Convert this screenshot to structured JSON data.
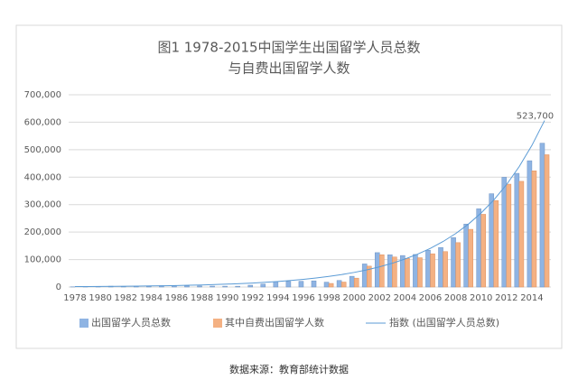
{
  "chart_data": {
    "type": "bar",
    "title": "图1 1978-2015中国学生出国留学人员总数",
    "subtitle": "与自费出国留学人数",
    "source": "数据来源：教育部统计数据",
    "categories": [
      "1978",
      null,
      "1980",
      null,
      "1982",
      null,
      "1984",
      null,
      "1986",
      null,
      "1988",
      null,
      "1990",
      null,
      "1992",
      null,
      "1994",
      null,
      "1996",
      null,
      "1998",
      null,
      "2000",
      null,
      "2002",
      null,
      "2004",
      null,
      "2006",
      null,
      "2008",
      null,
      "2010",
      null,
      "2012",
      null,
      "2014",
      null
    ],
    "series": [
      {
        "name": "出国留学人员总数",
        "color": "#8fb4e3",
        "values": [
          860,
          1777,
          2124,
          2922,
          2326,
          2633,
          3073,
          4888,
          4676,
          4703,
          3786,
          3329,
          2950,
          2900,
          6540,
          10742,
          19071,
          20381,
          20905,
          22410,
          17622,
          23749,
          38989,
          83973,
          125179,
          117307,
          114682,
          118515,
          134000,
          144000,
          179800,
          229300,
          284700,
          339700,
          399600,
          413900,
          459800,
          523700
        ],
        "value_labels": [
          null,
          null,
          null,
          null,
          null,
          null,
          null,
          null,
          null,
          null,
          null,
          null,
          null,
          null,
          null,
          null,
          null,
          null,
          null,
          null,
          null,
          null,
          null,
          null,
          null,
          null,
          null,
          null,
          null,
          null,
          null,
          null,
          null,
          null,
          null,
          null,
          null,
          "523,700"
        ]
      },
      {
        "name": "其中自费出国留学人数",
        "color": "#f4b183",
        "values": [
          null,
          null,
          null,
          null,
          null,
          null,
          null,
          null,
          null,
          null,
          null,
          null,
          null,
          null,
          null,
          null,
          null,
          null,
          null,
          null,
          13000,
          18000,
          32293,
          76052,
          117435,
          109200,
          104281,
          106600,
          121000,
          129000,
          161600,
          210100,
          264700,
          314800,
          374500,
          384800,
          423000,
          481600
        ]
      },
      {
        "name": "指数 (出国留学人员总数)",
        "color": "#5b9bd5",
        "type": "line",
        "values": [
          1500,
          1764,
          2075,
          2440,
          2870,
          3375,
          3970,
          4669,
          5491,
          6458,
          7595,
          8933,
          10506,
          12356,
          14532,
          17091,
          20101,
          23641,
          27804,
          32700,
          38459,
          45232,
          53198,
          62567,
          73585,
          86545,
          101786,
          119711,
          140793,
          165588,
          194750,
          229047,
          269384,
          316826,
          372622,
          438242,
          515420,
          606190
        ]
      }
    ],
    "ylim": [
      0,
      700000
    ],
    "yticks": [
      0,
      {
        "value": 100000,
        "label": "100,000"
      },
      {
        "value": 200000,
        "label": "200,000"
      },
      {
        "value": 300000,
        "label": "300,000"
      },
      {
        "value": 400000,
        "label": "400,000"
      },
      {
        "value": 500000,
        "label": "500,000"
      },
      {
        "value": 600000,
        "label": "600,000"
      },
      {
        "value": 700000,
        "label": "700,000"
      }
    ],
    "grid": true
  }
}
